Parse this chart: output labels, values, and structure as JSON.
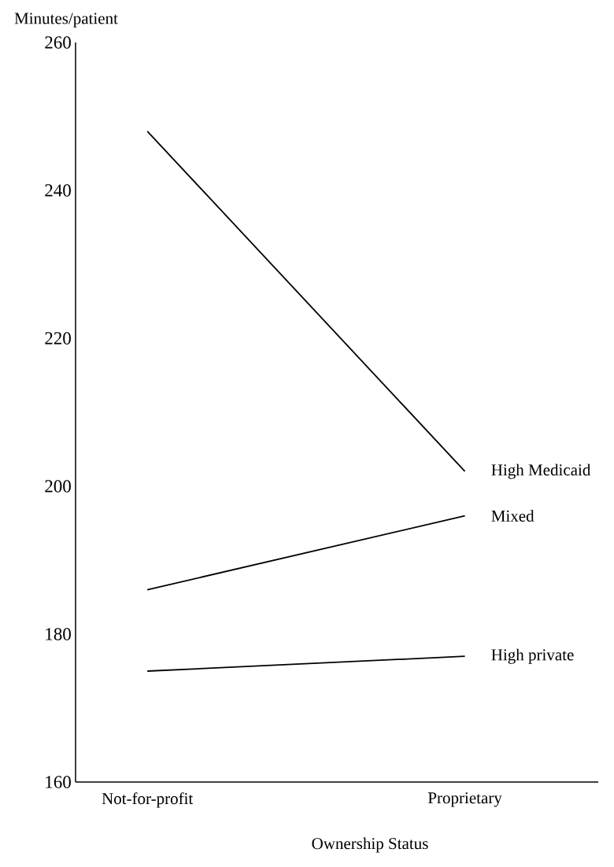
{
  "chart_data": {
    "type": "line",
    "xlabel": "Ownership Status",
    "ylabel": "Minutes/patient",
    "categories": [
      "Not-for-profit",
      "Proprietary"
    ],
    "series": [
      {
        "name": "High Medicaid",
        "color": "#000000",
        "values": [
          248,
          202
        ]
      },
      {
        "name": "Mixed",
        "color": "#000000",
        "values": [
          186,
          196
        ]
      },
      {
        "name": "High private",
        "color": "#000000",
        "values": [
          175,
          177
        ]
      }
    ],
    "ylim": [
      160,
      260
    ],
    "yticks": [
      160,
      180,
      200,
      220,
      240,
      260
    ],
    "grid": false,
    "legend": false,
    "marker": "none",
    "line_style": "solid"
  }
}
